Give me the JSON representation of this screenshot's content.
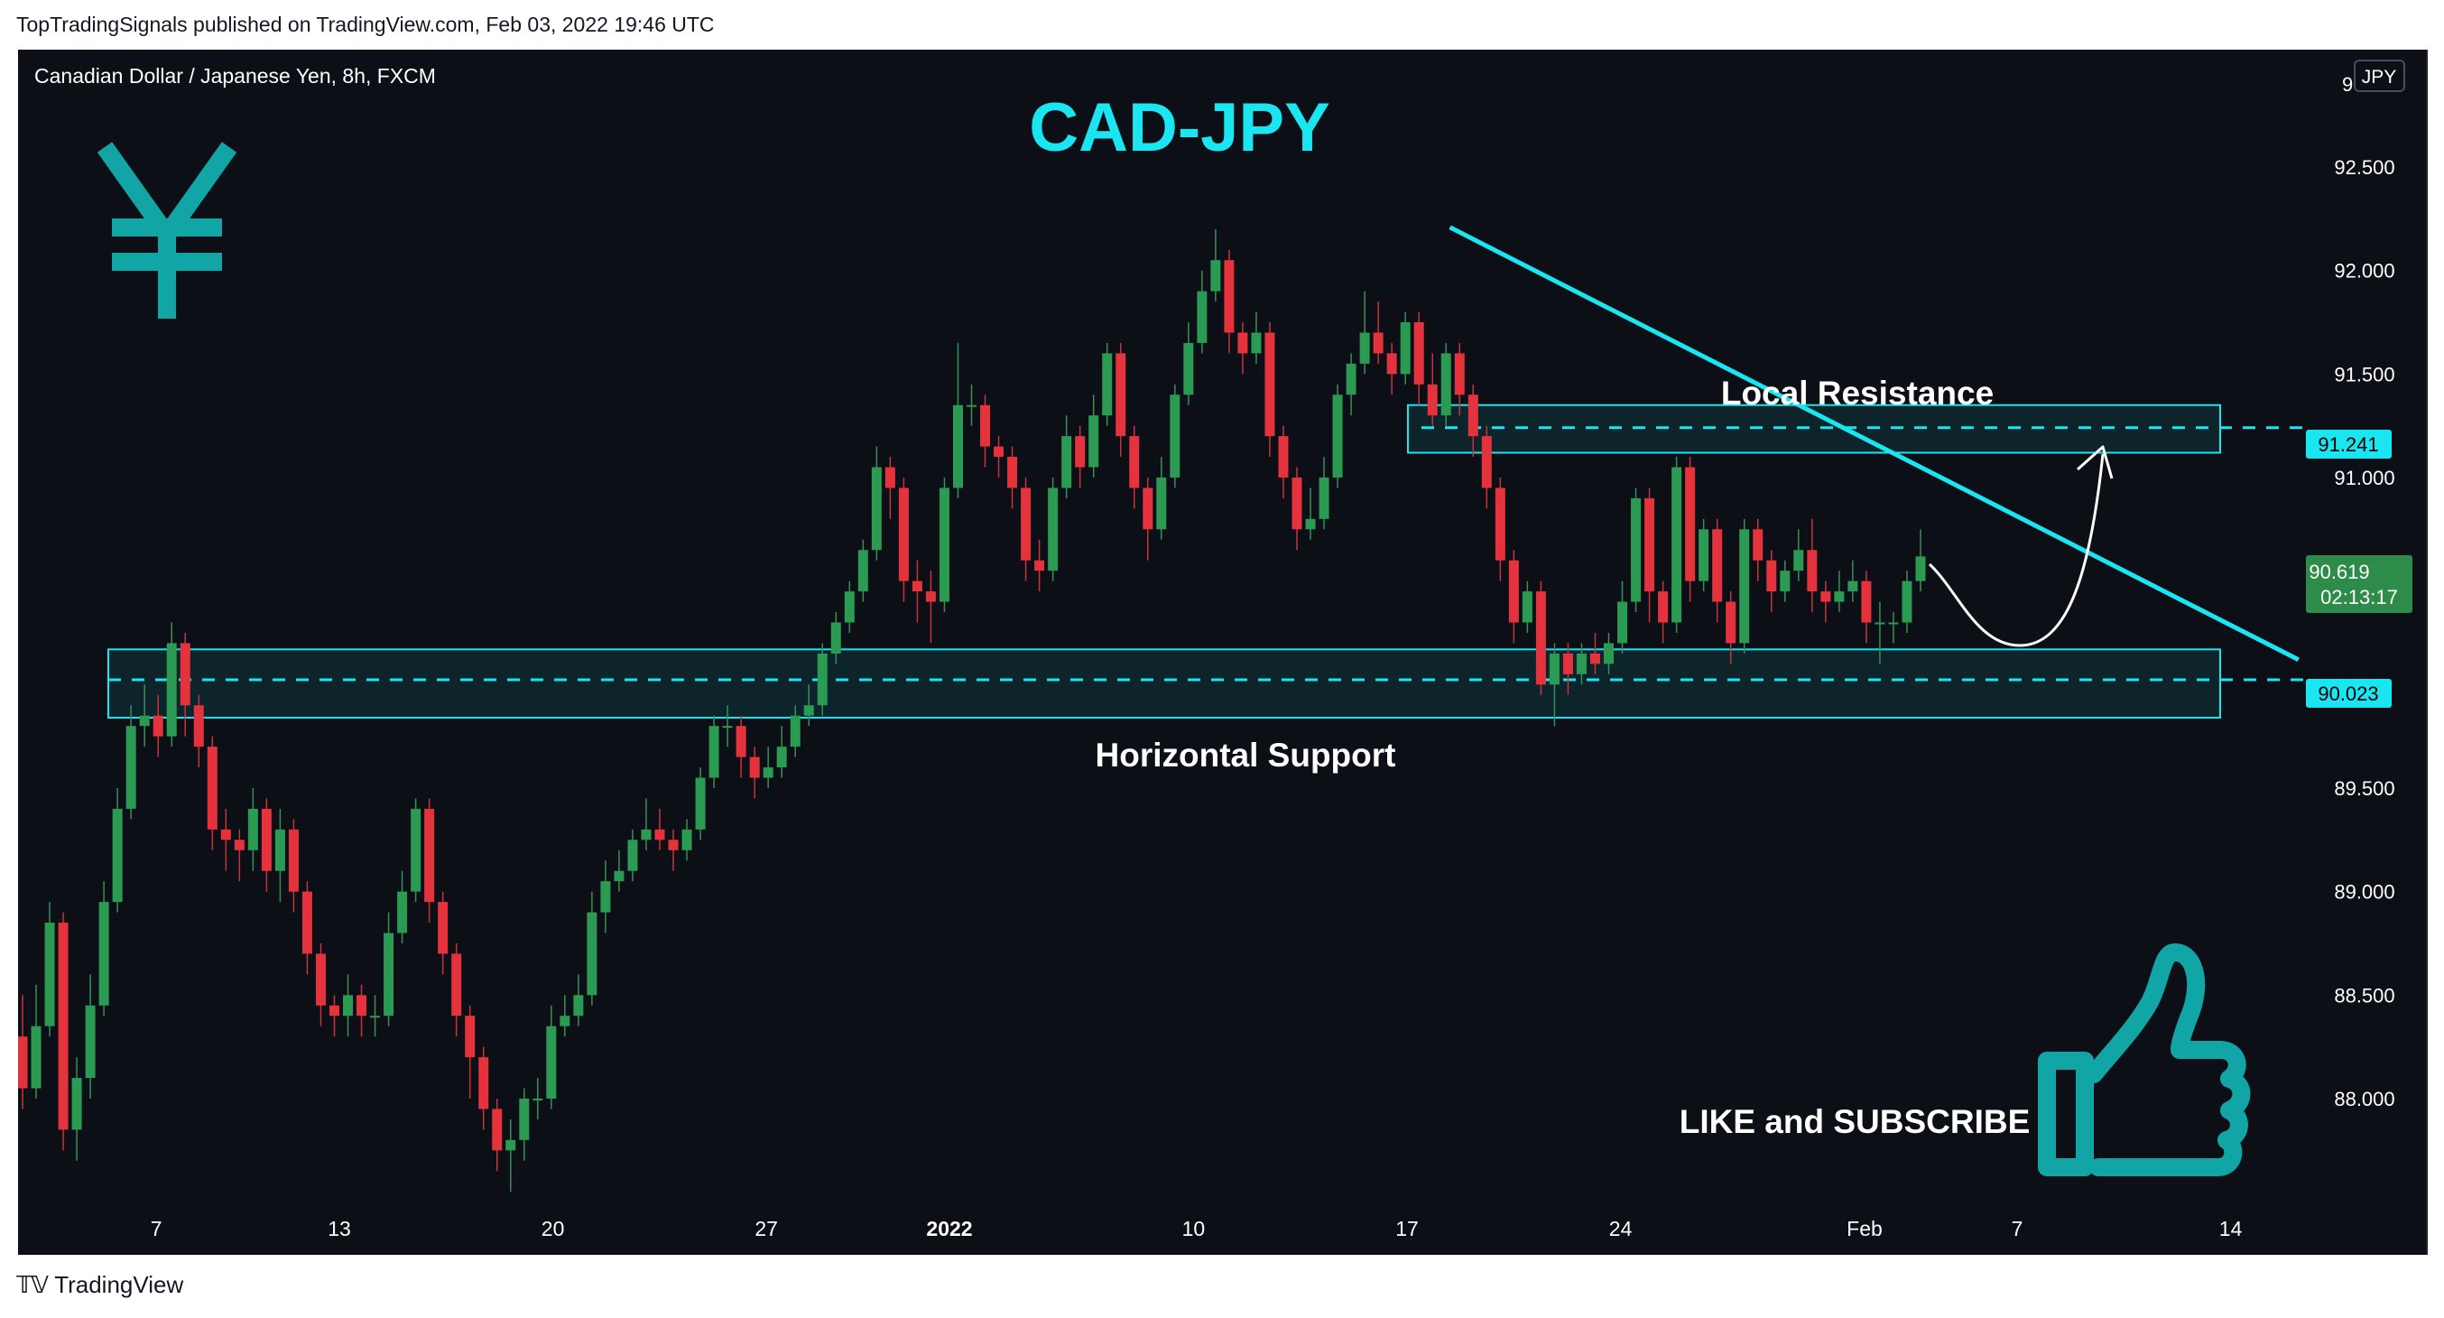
{
  "header": {
    "published_by": "TopTradingSignals published on TradingView.com, Feb 03, 2022 19:46 UTC"
  },
  "footer": {
    "brand": "TradingView"
  },
  "chart_data": {
    "type": "candlestick",
    "title": "CAD-JPY",
    "symbol_info": "Canadian Dollar / Japanese Yen, 8h, FXCM",
    "currency_badge": "JPY",
    "ylim": [
      87.4,
      93.0
    ],
    "y_ticks": [
      "92.500",
      "92.000",
      "91.500",
      "91.000",
      "89.500",
      "89.000",
      "88.500",
      "88.000"
    ],
    "x_ticks": [
      "7",
      "13",
      "20",
      "27",
      "2022",
      "10",
      "17",
      "24",
      "Feb",
      "7",
      "14"
    ],
    "price_labels": {
      "resistance_line": "91.241",
      "current_price": "90.619",
      "countdown": "02:13:17",
      "support_line": "90.023"
    },
    "annotations": {
      "resistance_label": "Local Resistance",
      "support_label": "Horizontal Support",
      "cta": "LIKE and SUBSCRIBE"
    },
    "zones": {
      "support": {
        "top": 90.17,
        "bottom": 89.84,
        "line": 90.023
      },
      "resistance": {
        "top": 91.35,
        "bottom": 91.12,
        "line": 91.241
      }
    },
    "trendline": {
      "start": [
        17,
        92.2
      ],
      "end": [
        46,
        90.12
      ]
    },
    "candles_start_index": -3,
    "candles": [
      [
        88.3,
        88.05,
        88.5,
        87.95
      ],
      [
        88.05,
        88.35,
        88.55,
        88.0
      ],
      [
        88.35,
        88.85,
        88.95,
        88.3
      ],
      [
        88.85,
        87.85,
        88.9,
        87.75
      ],
      [
        87.85,
        88.1,
        88.2,
        87.7
      ],
      [
        88.1,
        88.45,
        88.6,
        88.0
      ],
      [
        88.45,
        88.95,
        89.05,
        88.4
      ],
      [
        88.95,
        89.4,
        89.5,
        88.9
      ],
      [
        89.4,
        89.8,
        89.9,
        89.35
      ],
      [
        89.8,
        89.85,
        90.0,
        89.7
      ],
      [
        89.85,
        89.75,
        89.95,
        89.65
      ],
      [
        89.75,
        90.2,
        90.3,
        89.7
      ],
      [
        90.2,
        89.9,
        90.25,
        89.75
      ],
      [
        89.9,
        89.7,
        89.95,
        89.6
      ],
      [
        89.7,
        89.3,
        89.75,
        89.2
      ],
      [
        89.3,
        89.25,
        89.4,
        89.1
      ],
      [
        89.25,
        89.2,
        89.3,
        89.05
      ],
      [
        89.2,
        89.4,
        89.5,
        89.1
      ],
      [
        89.4,
        89.1,
        89.45,
        89.0
      ],
      [
        89.1,
        89.3,
        89.4,
        88.95
      ],
      [
        89.3,
        89.0,
        89.35,
        88.9
      ],
      [
        89.0,
        88.7,
        89.05,
        88.6
      ],
      [
        88.7,
        88.45,
        88.75,
        88.35
      ],
      [
        88.45,
        88.4,
        88.5,
        88.3
      ],
      [
        88.4,
        88.5,
        88.6,
        88.3
      ],
      [
        88.5,
        88.4,
        88.55,
        88.3
      ],
      [
        88.4,
        88.4,
        88.5,
        88.3
      ],
      [
        88.4,
        88.8,
        88.9,
        88.35
      ],
      [
        88.8,
        89.0,
        89.1,
        88.75
      ],
      [
        89.0,
        89.4,
        89.45,
        88.95
      ],
      [
        89.4,
        88.95,
        89.45,
        88.85
      ],
      [
        88.95,
        88.7,
        89.0,
        88.6
      ],
      [
        88.7,
        88.4,
        88.75,
        88.3
      ],
      [
        88.4,
        88.2,
        88.45,
        88.0
      ],
      [
        88.2,
        87.95,
        88.25,
        87.85
      ],
      [
        87.95,
        87.75,
        88.0,
        87.65
      ],
      [
        87.75,
        87.8,
        87.9,
        87.55
      ],
      [
        87.8,
        88.0,
        88.05,
        87.7
      ],
      [
        88.0,
        88.0,
        88.1,
        87.9
      ],
      [
        88.0,
        88.35,
        88.45,
        87.95
      ],
      [
        88.35,
        88.4,
        88.5,
        88.3
      ],
      [
        88.4,
        88.5,
        88.6,
        88.35
      ],
      [
        88.5,
        88.9,
        89.0,
        88.45
      ],
      [
        88.9,
        89.05,
        89.15,
        88.8
      ],
      [
        89.05,
        89.1,
        89.2,
        89.0
      ],
      [
        89.1,
        89.25,
        89.3,
        89.05
      ],
      [
        89.25,
        89.3,
        89.45,
        89.2
      ],
      [
        89.3,
        89.25,
        89.4,
        89.2
      ],
      [
        89.25,
        89.2,
        89.3,
        89.1
      ],
      [
        89.2,
        89.3,
        89.35,
        89.15
      ],
      [
        89.3,
        89.55,
        89.6,
        89.25
      ],
      [
        89.55,
        89.8,
        89.85,
        89.5
      ],
      [
        89.8,
        89.8,
        89.9,
        89.7
      ],
      [
        89.8,
        89.65,
        89.85,
        89.55
      ],
      [
        89.65,
        89.55,
        89.7,
        89.45
      ],
      [
        89.55,
        89.6,
        89.7,
        89.5
      ],
      [
        89.6,
        89.7,
        89.8,
        89.55
      ],
      [
        89.7,
        89.85,
        89.9,
        89.65
      ],
      [
        89.85,
        89.9,
        90.0,
        89.8
      ],
      [
        89.9,
        90.15,
        90.2,
        89.85
      ],
      [
        90.15,
        90.3,
        90.35,
        90.1
      ],
      [
        90.3,
        90.45,
        90.5,
        90.25
      ],
      [
        90.45,
        90.65,
        90.7,
        90.4
      ],
      [
        90.65,
        91.05,
        91.15,
        90.6
      ],
      [
        91.05,
        90.95,
        91.1,
        90.8
      ],
      [
        90.95,
        90.5,
        91.0,
        90.4
      ],
      [
        90.5,
        90.45,
        90.6,
        90.3
      ],
      [
        90.45,
        90.4,
        90.55,
        90.2
      ],
      [
        90.4,
        90.95,
        91.0,
        90.35
      ],
      [
        90.95,
        91.35,
        91.65,
        90.9
      ],
      [
        91.35,
        91.35,
        91.45,
        91.25
      ],
      [
        91.35,
        91.15,
        91.4,
        91.05
      ],
      [
        91.15,
        91.1,
        91.2,
        91.0
      ],
      [
        91.1,
        90.95,
        91.15,
        90.85
      ],
      [
        90.95,
        90.6,
        91.0,
        90.5
      ],
      [
        90.6,
        90.55,
        90.7,
        90.45
      ],
      [
        90.55,
        90.95,
        91.0,
        90.5
      ],
      [
        90.95,
        91.2,
        91.3,
        90.9
      ],
      [
        91.2,
        91.05,
        91.25,
        90.95
      ],
      [
        91.05,
        91.3,
        91.4,
        91.0
      ],
      [
        91.3,
        91.6,
        91.65,
        91.25
      ],
      [
        91.6,
        91.2,
        91.65,
        91.1
      ],
      [
        91.2,
        90.95,
        91.25,
        90.85
      ],
      [
        90.95,
        90.75,
        91.0,
        90.6
      ],
      [
        90.75,
        91.0,
        91.1,
        90.7
      ],
      [
        91.0,
        91.4,
        91.45,
        90.95
      ],
      [
        91.4,
        91.65,
        91.75,
        91.35
      ],
      [
        91.65,
        91.9,
        92.0,
        91.6
      ],
      [
        91.9,
        92.05,
        92.2,
        91.85
      ],
      [
        92.05,
        91.7,
        92.1,
        91.6
      ],
      [
        91.7,
        91.6,
        91.75,
        91.5
      ],
      [
        91.6,
        91.7,
        91.8,
        91.55
      ],
      [
        91.7,
        91.2,
        91.75,
        91.1
      ],
      [
        91.2,
        91.0,
        91.25,
        90.9
      ],
      [
        91.0,
        90.75,
        91.05,
        90.65
      ],
      [
        90.75,
        90.8,
        90.95,
        90.7
      ],
      [
        90.8,
        91.0,
        91.1,
        90.75
      ],
      [
        91.0,
        91.4,
        91.45,
        90.95
      ],
      [
        91.4,
        91.55,
        91.6,
        91.3
      ],
      [
        91.55,
        91.7,
        91.9,
        91.5
      ],
      [
        91.7,
        91.6,
        91.85,
        91.55
      ],
      [
        91.6,
        91.5,
        91.65,
        91.4
      ],
      [
        91.5,
        91.75,
        91.8,
        91.45
      ],
      [
        91.75,
        91.45,
        91.8,
        91.35
      ],
      [
        91.45,
        91.3,
        91.6,
        91.25
      ],
      [
        91.3,
        91.6,
        91.65,
        91.25
      ],
      [
        91.6,
        91.4,
        91.65,
        91.3
      ],
      [
        91.4,
        91.2,
        91.45,
        91.1
      ],
      [
        91.2,
        90.95,
        91.25,
        90.85
      ],
      [
        90.95,
        90.6,
        91.0,
        90.5
      ],
      [
        90.6,
        90.3,
        90.65,
        90.2
      ],
      [
        90.3,
        90.45,
        90.5,
        90.25
      ],
      [
        90.45,
        90.0,
        90.5,
        89.95
      ],
      [
        90.0,
        90.15,
        90.2,
        89.8
      ],
      [
        90.15,
        90.05,
        90.2,
        89.95
      ],
      [
        90.05,
        90.15,
        90.2,
        90.0
      ],
      [
        90.15,
        90.1,
        90.25,
        90.05
      ],
      [
        90.1,
        90.2,
        90.25,
        90.05
      ],
      [
        90.2,
        90.4,
        90.5,
        90.15
      ],
      [
        90.4,
        90.9,
        90.95,
        90.35
      ],
      [
        90.9,
        90.45,
        90.95,
        90.3
      ],
      [
        90.45,
        90.3,
        90.5,
        90.2
      ],
      [
        90.3,
        91.05,
        91.1,
        90.25
      ],
      [
        91.05,
        90.5,
        91.1,
        90.4
      ],
      [
        90.5,
        90.75,
        90.8,
        90.45
      ],
      [
        90.75,
        90.4,
        90.8,
        90.3
      ],
      [
        90.4,
        90.2,
        90.45,
        90.1
      ],
      [
        90.2,
        90.75,
        90.8,
        90.15
      ],
      [
        90.75,
        90.6,
        90.8,
        90.5
      ],
      [
        90.6,
        90.45,
        90.65,
        90.35
      ],
      [
        90.45,
        90.55,
        90.6,
        90.4
      ],
      [
        90.55,
        90.65,
        90.75,
        90.5
      ],
      [
        90.65,
        90.45,
        90.8,
        90.35
      ],
      [
        90.45,
        90.4,
        90.5,
        90.3
      ],
      [
        90.4,
        90.45,
        90.55,
        90.35
      ],
      [
        90.45,
        90.5,
        90.6,
        90.4
      ],
      [
        90.5,
        90.3,
        90.55,
        90.2
      ],
      [
        90.3,
        90.3,
        90.4,
        90.1
      ],
      [
        90.3,
        90.3,
        90.35,
        90.2
      ],
      [
        90.3,
        90.5,
        90.55,
        90.25
      ],
      [
        90.5,
        90.619,
        90.75,
        90.45
      ]
    ]
  }
}
